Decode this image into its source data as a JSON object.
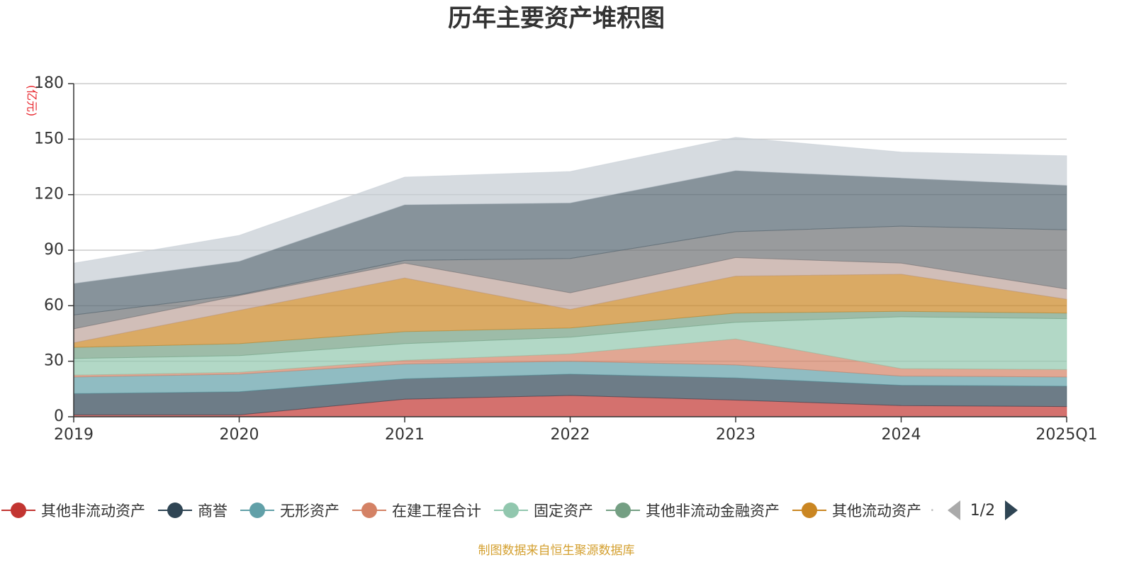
{
  "chart_data": {
    "type": "area",
    "stacked": true,
    "title": "历年主要资产堆积图",
    "unit_label": "(亿元)",
    "x": [
      "2019",
      "2020",
      "2021",
      "2022",
      "2023",
      "2024",
      "2025Q1"
    ],
    "ylim": [
      0,
      180
    ],
    "yticks": [
      0,
      30,
      60,
      90,
      120,
      150,
      180
    ],
    "grid": true,
    "legend_position": "bottom",
    "series": [
      {
        "name": "其他非流动资产",
        "color": "#c23531",
        "values": [
          1,
          1,
          9.5,
          11.5,
          9,
          6,
          5.5
        ]
      },
      {
        "name": "商誉",
        "color": "#2f4554",
        "values": [
          11.5,
          12.5,
          11,
          11.5,
          12,
          11,
          11
        ]
      },
      {
        "name": "无形资产",
        "color": "#61a0a8",
        "values": [
          9,
          9.5,
          8,
          7,
          7,
          5,
          5
        ]
      },
      {
        "name": "在建工程合计",
        "color": "#d48265",
        "values": [
          1,
          1,
          2,
          4,
          14,
          4,
          4
        ]
      },
      {
        "name": "固定资产",
        "color": "#91c7ae",
        "values": [
          9,
          9,
          9,
          9,
          9,
          28,
          27.5
        ]
      },
      {
        "name": "其他非流动金融资产",
        "color": "#749f83",
        "values": [
          6,
          6.5,
          6.5,
          5,
          5,
          3,
          3
        ]
      },
      {
        "name": "其他流动资产",
        "color": "#ca8622",
        "values": [
          2.5,
          18,
          29,
          10,
          20,
          20,
          7.5
        ]
      },
      {
        "name": "",
        "color": "#bda29a",
        "values": [
          7.5,
          8,
          8,
          9,
          10,
          6,
          5.5
        ]
      },
      {
        "name": "",
        "color": "#6e7074",
        "values": [
          7.5,
          0.5,
          1.5,
          18.5,
          14,
          20,
          32
        ]
      },
      {
        "name": "",
        "color": "#546570",
        "values": [
          17,
          18,
          30,
          30,
          33,
          26,
          24
        ]
      },
      {
        "name": "",
        "color": "#c4ccd3",
        "values": [
          11,
          14,
          15,
          17,
          18,
          14,
          16
        ]
      }
    ]
  },
  "legend": {
    "ellipsis": "·",
    "page_indicator": "1/2"
  },
  "source_note": "制图数据来自恒生聚源数据库"
}
